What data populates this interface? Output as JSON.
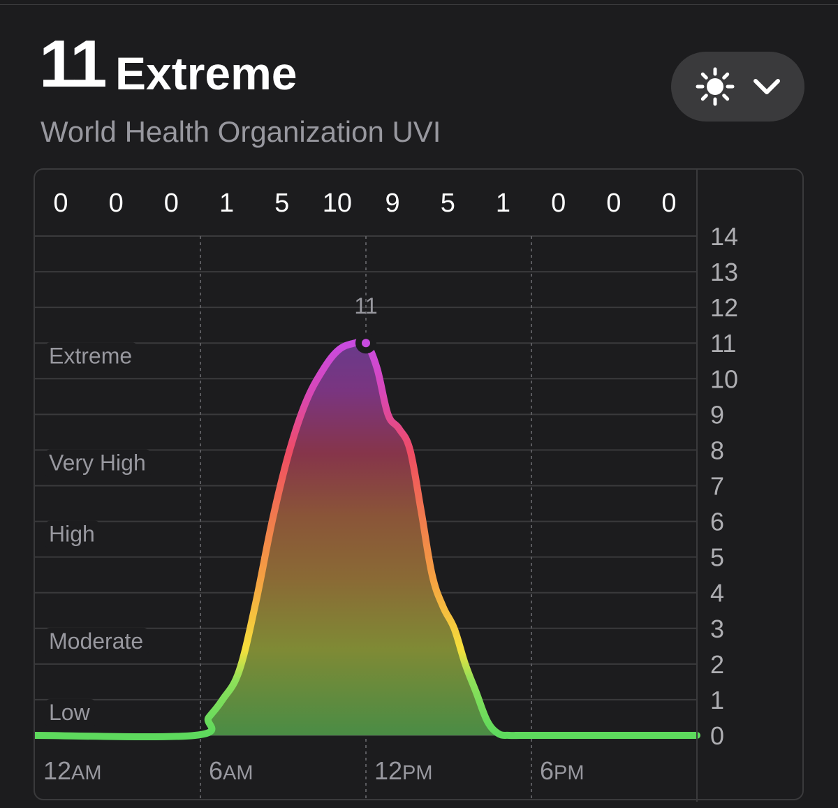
{
  "header": {
    "uv_value": "11",
    "uv_category": "Extreme",
    "source": "World Health Organization UVI"
  },
  "metric_selector": {
    "icon": "sun-icon",
    "chevron": "chevron-down-icon"
  },
  "colors": {
    "background": "#1c1c1e",
    "green": "#5dd95d",
    "yellow": "#f5df3c",
    "orange": "#f5a142",
    "red": "#ef4d63",
    "purple": "#c94be0"
  },
  "chart_data": {
    "type": "area",
    "hourly_labels": [
      "0",
      "0",
      "0",
      "1",
      "5",
      "10",
      "9",
      "5",
      "1",
      "0",
      "0",
      "0"
    ],
    "y_ticks": [
      0,
      1,
      2,
      3,
      4,
      5,
      6,
      7,
      8,
      9,
      10,
      11,
      12,
      13,
      14
    ],
    "ylim": [
      0,
      14
    ],
    "xlim": [
      0,
      24
    ],
    "x_axis": [
      {
        "hour": 0,
        "num": "12",
        "suffix": "AM"
      },
      {
        "hour": 6,
        "num": "6",
        "suffix": "AM"
      },
      {
        "hour": 12,
        "num": "12",
        "suffix": "PM"
      },
      {
        "hour": 18,
        "num": "6",
        "suffix": "PM"
      }
    ],
    "bands": [
      {
        "label": "Low",
        "value": 0
      },
      {
        "label": "Moderate",
        "value": 2
      },
      {
        "label": "High",
        "value": 5
      },
      {
        "label": "Very High",
        "value": 7
      },
      {
        "label": "Extreme",
        "value": 10
      }
    ],
    "peak": {
      "hour": 12,
      "value": 11,
      "label": "11"
    },
    "series": [
      {
        "x": [
          0,
          5.8,
          6.3,
          6.8,
          7.4,
          8.0,
          8.6,
          9.2,
          9.8,
          10.4,
          11.0,
          11.6,
          12.0,
          12.4,
          12.8,
          13.2,
          13.6,
          14.0,
          14.4,
          14.8,
          15.2,
          15.6,
          16.0,
          16.4,
          16.8,
          17.2,
          17.6,
          18.0,
          24
        ],
        "y": [
          0,
          0,
          0.5,
          1.0,
          1.8,
          3.7,
          6.0,
          7.9,
          9.3,
          10.2,
          10.8,
          11.0,
          11.0,
          10.3,
          9.0,
          8.6,
          8.0,
          6.3,
          4.5,
          3.6,
          3.0,
          2.0,
          1.2,
          0.4,
          0.05,
          0,
          0,
          0,
          0
        ]
      }
    ]
  }
}
